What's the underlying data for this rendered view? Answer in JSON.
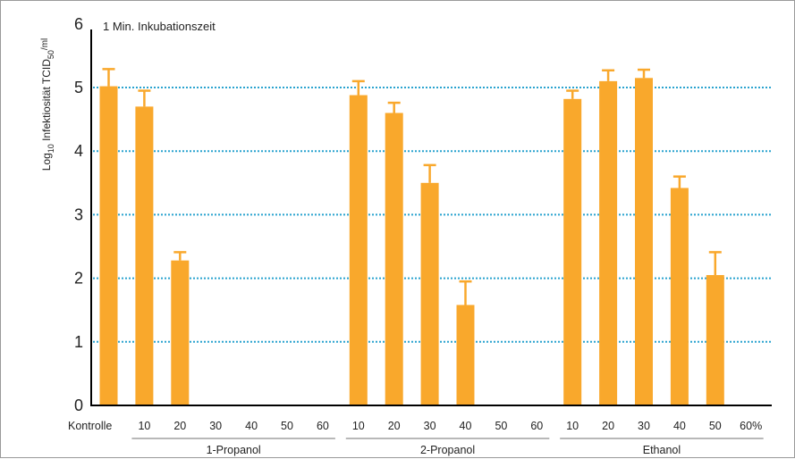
{
  "chart_data": {
    "type": "bar",
    "annotation": "1 Min. Inkubationszeit",
    "ylabel": {
      "prefix": "Log",
      "prefix_sub": "10",
      "main": " Infektiosität TCID",
      "main_sub": "50",
      "suffix": "/ml"
    },
    "ylim": [
      0,
      6
    ],
    "yticks": [
      "0",
      "1",
      "2",
      "3",
      "4",
      "5",
      "6"
    ],
    "grid": "dotted horizontal at 1–5",
    "colors": {
      "bar": "#F9A82C",
      "grid": "#2AA3CF",
      "axis": "#000000",
      "bracket": "#B8B8B8"
    },
    "categories": [
      "Kontrolle",
      "10",
      "20",
      "30",
      "40",
      "50",
      "60",
      "10",
      "20",
      "30",
      "40",
      "50",
      "60",
      "10",
      "20",
      "30",
      "40",
      "50",
      "60%"
    ],
    "values": [
      5.02,
      4.7,
      2.28,
      null,
      null,
      null,
      null,
      4.88,
      4.6,
      3.5,
      1.58,
      null,
      null,
      4.82,
      5.1,
      5.15,
      3.42,
      2.05,
      null
    ],
    "errors": [
      0.27,
      0.25,
      0.13,
      null,
      null,
      null,
      null,
      0.22,
      0.16,
      0.28,
      0.37,
      null,
      null,
      0.13,
      0.17,
      0.13,
      0.18,
      0.36,
      null
    ],
    "groups": [
      {
        "name": "1-Propanol",
        "start": 1,
        "end": 6
      },
      {
        "name": "2-Propanol",
        "start": 7,
        "end": 12
      },
      {
        "name": "Ethanol",
        "start": 13,
        "end": 18
      }
    ]
  }
}
